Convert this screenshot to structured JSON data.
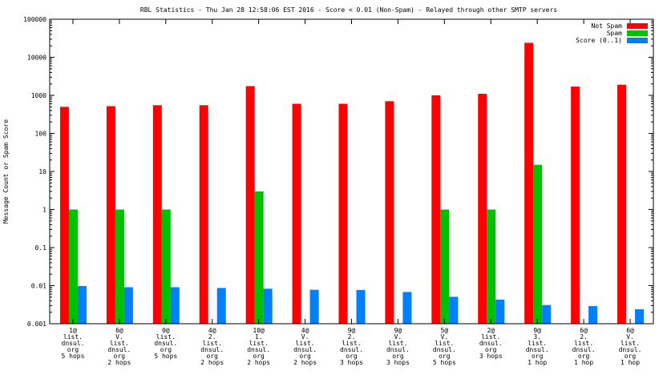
{
  "chart_data": {
    "type": "bar",
    "title": "RBL Statistics - Thu Jan 28 12:58:06 EST 2016 - Score < 0.01 (Non-Spam) - Relayed through other SMTP servers",
    "ylabel": "Message Count or Spam Score",
    "xlabel": "",
    "yscale": "log",
    "ylim": [
      0.001,
      100000
    ],
    "yticks": [
      "0.001",
      "0.01",
      "0.1",
      "1",
      "10",
      "100",
      "1000",
      "10000",
      "100000"
    ],
    "legend_position": "top-right",
    "categories": [
      [
        "1@",
        "list.",
        "dnsul.",
        "org",
        "5 hops"
      ],
      [
        "6@",
        "V.",
        "list.",
        "dnsul.",
        "org",
        "2 hops"
      ],
      [
        "0@",
        "list.",
        "dnsul.",
        "org",
        "5 hops"
      ],
      [
        "4@",
        "2.",
        "list.",
        "dnsul.",
        "org",
        "2 hops"
      ],
      [
        "10@",
        "1.",
        "list.",
        "dnsul.",
        "org",
        "2 hops"
      ],
      [
        "4@",
        "V.",
        "list.",
        "dnsul.",
        "org",
        "2 hops"
      ],
      [
        "9@",
        "2.",
        "list.",
        "dnsul.",
        "org",
        "3 hops"
      ],
      [
        "9@",
        "V.",
        "list.",
        "dnsul.",
        "org",
        "3 hops"
      ],
      [
        "5@",
        "V.",
        "list.",
        "dnsul.",
        "org",
        "5 hops"
      ],
      [
        "2@",
        "list.",
        "dnsul.",
        "org",
        "3 hops"
      ],
      [
        "9@",
        "3.",
        "list.",
        "dnsul.",
        "org",
        "1 hop"
      ],
      [
        "6@",
        "2.",
        "list.",
        "dnsul.",
        "org",
        "1 hop"
      ],
      [
        "6@",
        "V.",
        "list.",
        "dnsul.",
        "org",
        "1 hop"
      ]
    ],
    "series": [
      {
        "name": "Not Spam",
        "color": "#ff0000",
        "values": [
          500,
          520,
          550,
          550,
          1750,
          600,
          600,
          700,
          1000,
          1100,
          24000,
          1700,
          1900
        ]
      },
      {
        "name": "Spam",
        "color": "#00c000",
        "values": [
          1,
          1,
          1,
          null,
          3,
          null,
          null,
          null,
          1,
          1,
          15,
          null,
          null
        ]
      },
      {
        "name": "Score (0..1)",
        "color": "#0080ff",
        "values": [
          0.0098,
          0.0091,
          0.0091,
          0.0087,
          0.0083,
          0.0078,
          0.0077,
          0.0068,
          0.0051,
          0.0043,
          0.0031,
          0.0029,
          0.0024
        ]
      }
    ]
  }
}
